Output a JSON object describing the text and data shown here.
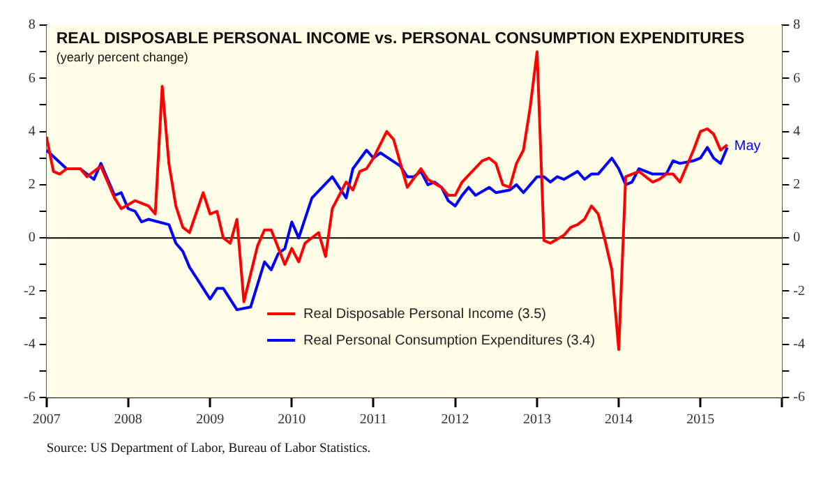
{
  "chart_data": {
    "type": "line",
    "title": "REAL DISPOSABLE PERSONAL INCOME vs. PERSONAL CONSUMPTION EXPENDITURES",
    "subtitle": "(yearly percent change)",
    "series": [
      {
        "name": "Real Disposable Personal Income (3.5)",
        "color": "#ff0000",
        "x": [
          "2007-01",
          "2007-02",
          "2007-03",
          "2007-04",
          "2007-06",
          "2007-07",
          "2007-08",
          "2007-09",
          "2007-11",
          "2007-12",
          "2008-02",
          "2008-04",
          "2008-05",
          "2008-06",
          "2008-07",
          "2008-08",
          "2008-09",
          "2008-10",
          "2008-12",
          "2009-01",
          "2009-02",
          "2009-03",
          "2009-04",
          "2009-05",
          "2009-06",
          "2009-08",
          "2009-09",
          "2009-10",
          "2009-12",
          "2010-01",
          "2010-02",
          "2010-03",
          "2010-05",
          "2010-06",
          "2010-07",
          "2010-09",
          "2010-10",
          "2010-11",
          "2010-12",
          "2011-01",
          "2011-03",
          "2011-04",
          "2011-06",
          "2011-08",
          "2011-09",
          "2011-11",
          "2011-12",
          "2012-01",
          "2012-02",
          "2012-05",
          "2012-06",
          "2012-07",
          "2012-08",
          "2012-09",
          "2012-10",
          "2012-11",
          "2012-12",
          "2013-01",
          "2013-02",
          "2013-03",
          "2013-05",
          "2013-06",
          "2013-07",
          "2013-08",
          "2013-09",
          "2013-10",
          "2013-11",
          "2013-12",
          "2014-01",
          "2014-02",
          "2014-04",
          "2014-06",
          "2014-07",
          "2014-08",
          "2014-09",
          "2014-10",
          "2014-12",
          "2015-01",
          "2015-02",
          "2015-03",
          "2015-04",
          "2015-05"
        ],
        "values": [
          3.8,
          2.5,
          2.4,
          2.6,
          2.6,
          2.3,
          2.5,
          2.7,
          1.5,
          1.1,
          1.4,
          1.2,
          0.9,
          5.7,
          2.8,
          1.2,
          0.4,
          0.2,
          1.7,
          0.9,
          1.0,
          0.0,
          -0.2,
          0.7,
          -2.4,
          -0.3,
          0.3,
          0.3,
          -1.0,
          -0.4,
          -0.9,
          -0.2,
          0.2,
          -0.7,
          1.1,
          2.1,
          1.8,
          2.5,
          2.6,
          3.0,
          4.0,
          3.7,
          1.9,
          2.6,
          2.2,
          1.9,
          1.6,
          1.6,
          2.1,
          2.9,
          3.0,
          2.8,
          2.0,
          1.9,
          2.8,
          3.3,
          4.9,
          7.0,
          -0.1,
          -0.2,
          0.1,
          0.4,
          0.5,
          0.7,
          1.2,
          0.9,
          -0.1,
          -1.2,
          -4.2,
          2.3,
          2.5,
          2.1,
          2.2,
          2.4,
          2.4,
          2.1,
          3.3,
          4.0,
          4.1,
          3.9,
          3.3,
          3.5
        ]
      },
      {
        "name": "Real Personal Consumption Expenditures (3.4)",
        "color": "#0000ff",
        "x": [
          "2007-01",
          "2007-04",
          "2007-06",
          "2007-08",
          "2007-09",
          "2007-11",
          "2007-12",
          "2008-01",
          "2008-02",
          "2008-03",
          "2008-04",
          "2008-07",
          "2008-08",
          "2008-09",
          "2008-10",
          "2008-11",
          "2009-01",
          "2009-02",
          "2009-03",
          "2009-05",
          "2009-07",
          "2009-09",
          "2009-10",
          "2009-11",
          "2009-12",
          "2010-01",
          "2010-02",
          "2010-04",
          "2010-07",
          "2010-09",
          "2010-10",
          "2010-12",
          "2011-01",
          "2011-02",
          "2011-05",
          "2011-06",
          "2011-07",
          "2011-08",
          "2011-09",
          "2011-10",
          "2011-11",
          "2011-12",
          "2012-01",
          "2012-02",
          "2012-03",
          "2012-04",
          "2012-06",
          "2012-07",
          "2012-09",
          "2012-10",
          "2012-11",
          "2013-01",
          "2013-02",
          "2013-03",
          "2013-04",
          "2013-05",
          "2013-07",
          "2013-08",
          "2013-09",
          "2013-10",
          "2013-12",
          "2014-01",
          "2014-02",
          "2014-03",
          "2014-04",
          "2014-06",
          "2014-08",
          "2014-09",
          "2014-10",
          "2014-12",
          "2015-01",
          "2015-02",
          "2015-03",
          "2015-04",
          "2015-05"
        ],
        "values": [
          3.3,
          2.6,
          2.6,
          2.2,
          2.8,
          1.6,
          1.7,
          1.1,
          1.0,
          0.6,
          0.7,
          0.5,
          -0.2,
          -0.5,
          -1.1,
          -1.5,
          -2.3,
          -1.9,
          -1.9,
          -2.7,
          -2.6,
          -0.9,
          -1.2,
          -0.6,
          -0.4,
          0.6,
          0.0,
          1.5,
          2.3,
          1.5,
          2.6,
          3.3,
          3.0,
          3.2,
          2.7,
          2.3,
          2.3,
          2.5,
          2.0,
          2.1,
          1.9,
          1.4,
          1.2,
          1.6,
          1.9,
          1.6,
          1.9,
          1.7,
          1.8,
          2.0,
          1.7,
          2.3,
          2.3,
          2.1,
          2.3,
          2.2,
          2.5,
          2.2,
          2.4,
          2.4,
          3.0,
          2.6,
          2.0,
          2.1,
          2.6,
          2.4,
          2.4,
          2.9,
          2.8,
          2.9,
          3.0,
          3.4,
          3.0,
          2.8,
          3.4
        ]
      }
    ],
    "xlim": [
      "2007-01",
      "2016-01"
    ],
    "xticks": [
      {
        "value": "2007-01",
        "label": "2007"
      },
      {
        "value": "2008-01",
        "label": "2008"
      },
      {
        "value": "2009-01",
        "label": "2009"
      },
      {
        "value": "2010-01",
        "label": "2010"
      },
      {
        "value": "2011-01",
        "label": "2011"
      },
      {
        "value": "2012-01",
        "label": "2012"
      },
      {
        "value": "2013-01",
        "label": "2013"
      },
      {
        "value": "2014-01",
        "label": "2014"
      },
      {
        "value": "2015-01",
        "label": "2015"
      },
      {
        "value": "2016-01",
        "label": null
      }
    ],
    "ylim": [
      -6,
      8
    ],
    "yticks": [
      -6,
      {
        "value": -5,
        "label": null
      },
      -4,
      {
        "value": -3,
        "label": null
      },
      -2,
      {
        "value": -1,
        "label": null
      },
      0,
      {
        "value": 1,
        "label": null
      },
      2,
      {
        "value": 3,
        "label": null
      },
      4,
      {
        "value": 5,
        "label": null
      },
      6,
      {
        "value": 7,
        "label": null
      },
      8
    ],
    "y2lim": [
      -6,
      8
    ],
    "y2ticks": [
      -6,
      {
        "value": -5,
        "label": null
      },
      -4,
      {
        "value": -3,
        "label": null
      },
      -2,
      {
        "value": -1,
        "label": null
      },
      0,
      {
        "value": 1,
        "label": null
      },
      2,
      {
        "value": 3,
        "label": null
      },
      4,
      {
        "value": 5,
        "label": null
      },
      6,
      {
        "value": 7,
        "label": null
      },
      8
    ],
    "ref_lines": [
      {
        "axis": "y",
        "value": 0,
        "color": "#000000"
      }
    ],
    "annotations": [
      {
        "text": "May",
        "x": "2015-05",
        "y": 3.4
      },
      "Source: US Department of Labor, Bureau of Labor Statistics."
    ],
    "legend": "bottom",
    "marker": "none",
    "line_style": "solid"
  }
}
